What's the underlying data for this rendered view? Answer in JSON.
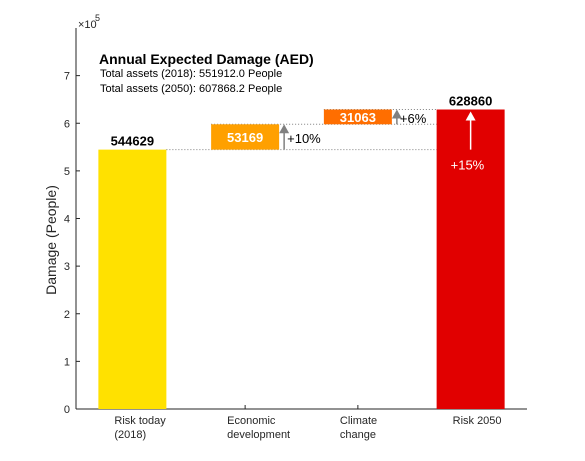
{
  "chart_data": {
    "type": "bar",
    "subtype": "waterfall",
    "title": "Annual Expected Damage (AED)",
    "subtitle_lines": [
      "Total assets (2018): 551912.0  People",
      "Total assets (2050): 607868.2  People"
    ],
    "ylabel": "Damage (People)",
    "xlabel": "",
    "y_exponent_label": "×10",
    "y_exponent_power": "5",
    "y_scale": 100000,
    "ylim": [
      0,
      800000
    ],
    "yticks": [
      0,
      100000,
      200000,
      300000,
      400000,
      500000,
      600000,
      700000
    ],
    "ytick_labels": [
      "0",
      "1",
      "2",
      "3",
      "4",
      "5",
      "6",
      "7"
    ],
    "categories": [
      [
        "Risk today",
        "(2018)"
      ],
      [
        "Economic",
        "development"
      ],
      [
        "Climate",
        "change"
      ],
      [
        "Risk 2050"
      ]
    ],
    "bars": [
      {
        "base": 0,
        "top": 544629,
        "label": "544629",
        "color": "#ffe100",
        "label_position": "above"
      },
      {
        "base": 544629,
        "top": 597798,
        "label": "53169",
        "color": "#ffa000",
        "label_position": "inside",
        "increment_label": "+10%",
        "arrow_color": "#808080"
      },
      {
        "base": 597798,
        "top": 628861,
        "label": "31063",
        "color": "#ff6e00",
        "label_position": "inside",
        "increment_label": "+6%",
        "arrow_color": "#808080"
      },
      {
        "base": 0,
        "top": 628860,
        "label": "628860",
        "color": "#e10000",
        "label_position": "above",
        "increment_label": "+15%",
        "arrow_color": "#ffffff",
        "arrow_from": 544629
      }
    ],
    "grid": false,
    "legend": "none"
  }
}
